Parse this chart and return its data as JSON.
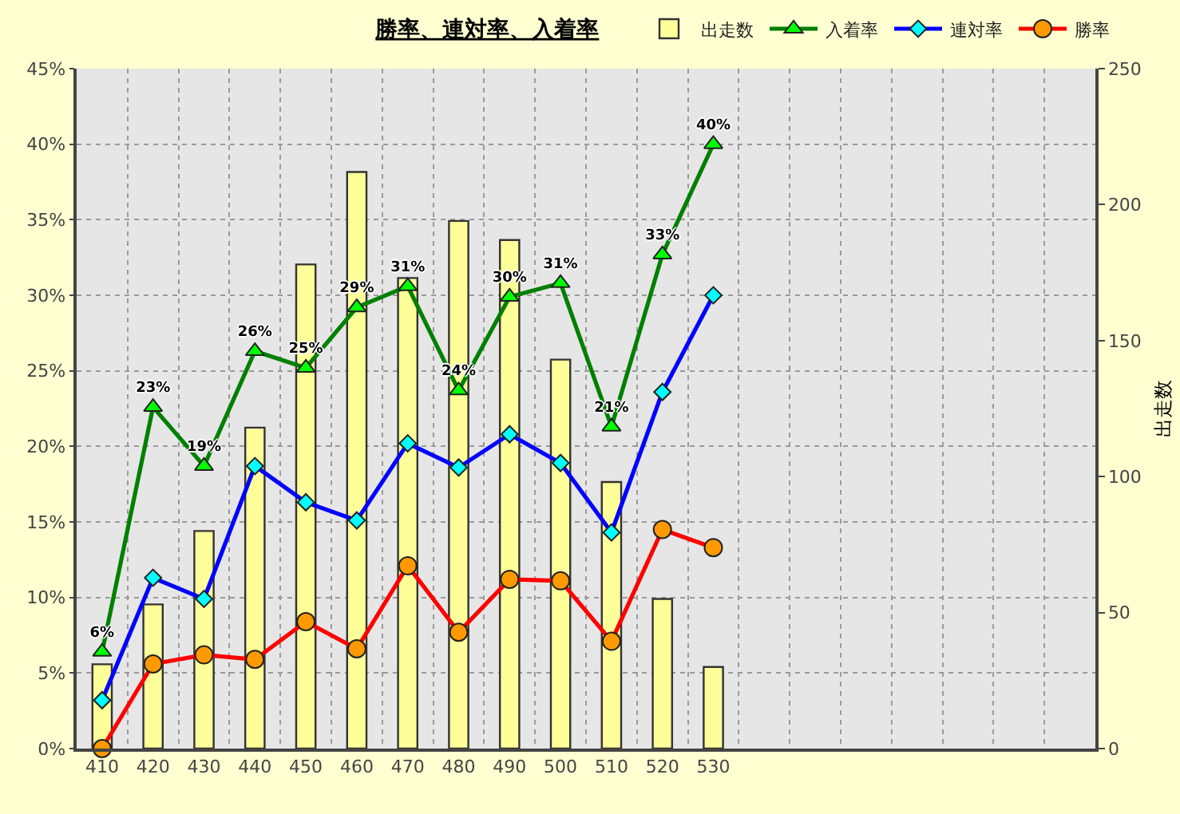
{
  "chart_data": {
    "type": "bar",
    "title": "勝率、連対率、入着率",
    "y2label": "出走数",
    "categories": [
      "410",
      "420",
      "430",
      "440",
      "450",
      "460",
      "470",
      "480",
      "490",
      "500",
      "510",
      "520",
      "530",
      null,
      null,
      null,
      null,
      null,
      null,
      null
    ],
    "series": [
      {
        "name": "出走数",
        "axis": "y2",
        "color": "#ffff99",
        "values": [
          31,
          53,
          80,
          118,
          178,
          212,
          173,
          194,
          187,
          143,
          98,
          55,
          30,
          null,
          null,
          null,
          null,
          null,
          null,
          null
        ]
      },
      {
        "name": "入着率",
        "type": "line",
        "color": "#008000",
        "marker": "triangle",
        "values": [
          6.4,
          22.6,
          18.7,
          26.3,
          25.2,
          29.2,
          30.6,
          23.7,
          29.9,
          30.8,
          21.3,
          32.7,
          40.0,
          null,
          null,
          null,
          null,
          null,
          null,
          null
        ],
        "value_labels": [
          "6%",
          "23%",
          "19%",
          "26%",
          "25%",
          "29%",
          "31%",
          "24%",
          "30%",
          "31%",
          "21%",
          "33%",
          "40%",
          null,
          null,
          null,
          null,
          null,
          null,
          null
        ]
      },
      {
        "name": "連対率",
        "type": "line",
        "color": "#0000ff",
        "marker": "diamond",
        "values": [
          3.2,
          11.3,
          9.9,
          18.7,
          16.3,
          15.1,
          20.2,
          18.6,
          20.8,
          18.9,
          14.3,
          23.6,
          30.0,
          null,
          null,
          null,
          null,
          null,
          null,
          null
        ]
      },
      {
        "name": "勝率",
        "type": "line",
        "color": "#ff0000",
        "marker": "circle",
        "values": [
          0,
          5.6,
          6.2,
          5.9,
          8.4,
          6.6,
          12.1,
          7.7,
          11.2,
          11.1,
          7.1,
          14.5,
          13.3,
          null,
          null,
          null,
          null,
          null,
          null,
          null
        ]
      }
    ],
    "ylim": [
      0,
      45
    ],
    "yticks": [
      {
        "value": 0,
        "label": "0%"
      },
      {
        "value": 5,
        "label": "5%"
      },
      {
        "value": 10,
        "label": "10%"
      },
      {
        "value": 15,
        "label": "15%"
      },
      {
        "value": 20,
        "label": "20%"
      },
      {
        "value": 25,
        "label": "25%"
      },
      {
        "value": 30,
        "label": "30%"
      },
      {
        "value": 35,
        "label": "35%"
      },
      {
        "value": 40,
        "label": "40%"
      },
      {
        "value": 45,
        "label": "45%"
      }
    ],
    "y2lim": [
      0,
      250
    ],
    "y2ticks": [
      0,
      50,
      100,
      150,
      200,
      250
    ],
    "grid": true,
    "legend": "top right",
    "line_style": "solid"
  }
}
